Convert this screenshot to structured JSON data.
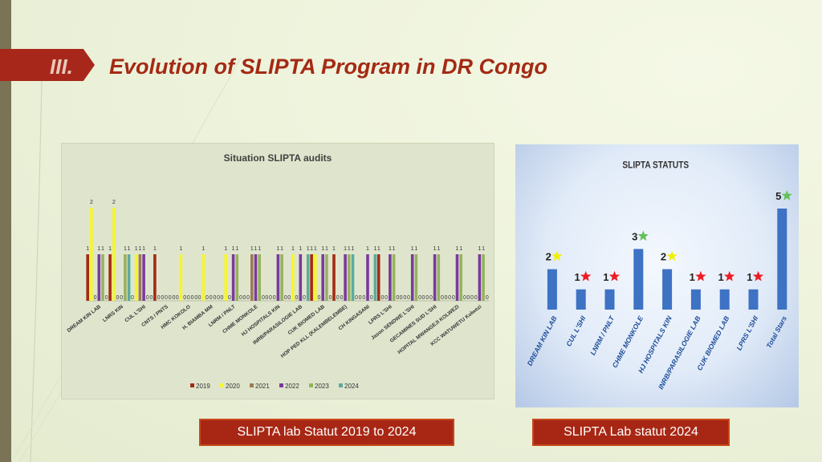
{
  "slide": {
    "section_number": "III.",
    "title": "Evolution of SLIPTA Program in DR Congo",
    "caption_left": "SLIPTA lab Statut  2019 to 2024",
    "caption_right": "SLIPTA Lab statut 2024"
  },
  "colors": {
    "accent_red": "#a8271b",
    "title_red": "#a42a14",
    "series": [
      "#a42a14",
      "#f5f530",
      "#9d7b52",
      "#7a3a9e",
      "#96b35c",
      "#5bab9e"
    ],
    "bar_blue": "#3d72c4",
    "star_red": "#ee1c24",
    "star_green": "#62c05a",
    "star_yellow": "#f0f000"
  },
  "chart_data": [
    {
      "type": "bar",
      "title": "Situation SLIPTA audits",
      "categories": [
        "DREAM KIN LAB",
        "LNRS KIN",
        "CUL L'SHI",
        "CNTS / PNTS",
        "HMC KOKOLO",
        "H. BIAMBA MM",
        "LNRM / PNLT",
        "CHME MONKOLE",
        "HJ HOSPITALS KIN",
        "INRB/PARASILOGIE LAB",
        "CUK BIOMED LAB",
        "HOP PED KLL (KALEMBELEMBE)",
        "CH KINGASANI",
        "LPRS L'SHI",
        "Jason SENDWE L'SHI",
        "GECAMINES SUD L'SHI",
        "HOPITAL MWANGEJI KOLWEZI",
        "KCC WATUWETU Kolwezi"
      ],
      "series": [
        {
          "name": "2019",
          "values": [
            1,
            1,
            0,
            1,
            0,
            0,
            0,
            0,
            0,
            0,
            1,
            1,
            0,
            1,
            0,
            0,
            0,
            0
          ]
        },
        {
          "name": "2020",
          "values": [
            2,
            2,
            1,
            0,
            1,
            1,
            1,
            0,
            0,
            1,
            1,
            0,
            0,
            0,
            0,
            0,
            0,
            0
          ]
        },
        {
          "name": "2021",
          "values": [
            0,
            0,
            1,
            0,
            0,
            0,
            0,
            1,
            0,
            0,
            0,
            0,
            0,
            0,
            0,
            0,
            0,
            0
          ]
        },
        {
          "name": "2022",
          "values": [
            1,
            0,
            1,
            0,
            0,
            0,
            1,
            1,
            1,
            1,
            1,
            1,
            1,
            1,
            1,
            1,
            1,
            1
          ]
        },
        {
          "name": "2023",
          "values": [
            1,
            1,
            0,
            0,
            0,
            0,
            1,
            1,
            1,
            0,
            1,
            1,
            0,
            1,
            1,
            1,
            1,
            1
          ]
        },
        {
          "name": "2024",
          "values": [
            0,
            1,
            0,
            0,
            0,
            0,
            0,
            0,
            0,
            1,
            0,
            1,
            1,
            0,
            0,
            0,
            0,
            0
          ]
        }
      ],
      "ylim": [
        0,
        2.6
      ],
      "grid": false,
      "legend": "bottom"
    },
    {
      "type": "bar",
      "title": "SLIPTA STATUTS",
      "categories": [
        "DREAM KIN LAB",
        "CUL L'SHI",
        "LNRM / PNLT",
        "CHME MONKOLE",
        "HJ HOSPITALS KIN",
        "INRB/PARASILOGIE LAB",
        "CUK BIOMED LAB",
        "LPRS L'SHI",
        "Total Stars"
      ],
      "values": [
        2,
        1,
        1,
        3,
        2,
        1,
        1,
        1,
        5
      ],
      "star_colors": [
        "yellow",
        "red",
        "red",
        "green",
        "yellow",
        "red",
        "red",
        "red",
        "green"
      ],
      "ylim": [
        0,
        6
      ],
      "grid": false,
      "legend": "none"
    }
  ]
}
